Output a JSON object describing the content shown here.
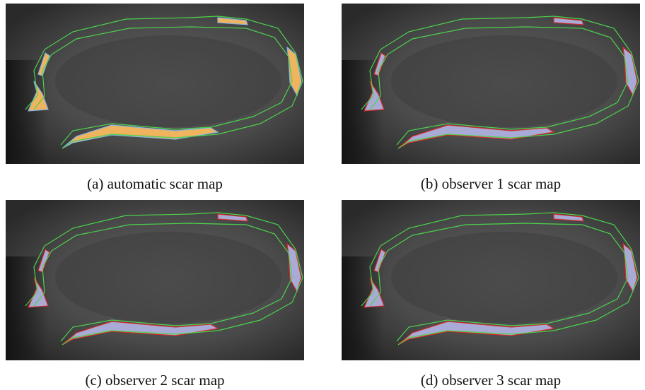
{
  "figure": {
    "panels": [
      {
        "caption": "(a) automatic scar map"
      },
      {
        "caption": "(b) observer 1 scar map"
      },
      {
        "caption": "(c) observer 2 scar map"
      },
      {
        "caption": "(d) observer 3 scar map"
      }
    ]
  }
}
